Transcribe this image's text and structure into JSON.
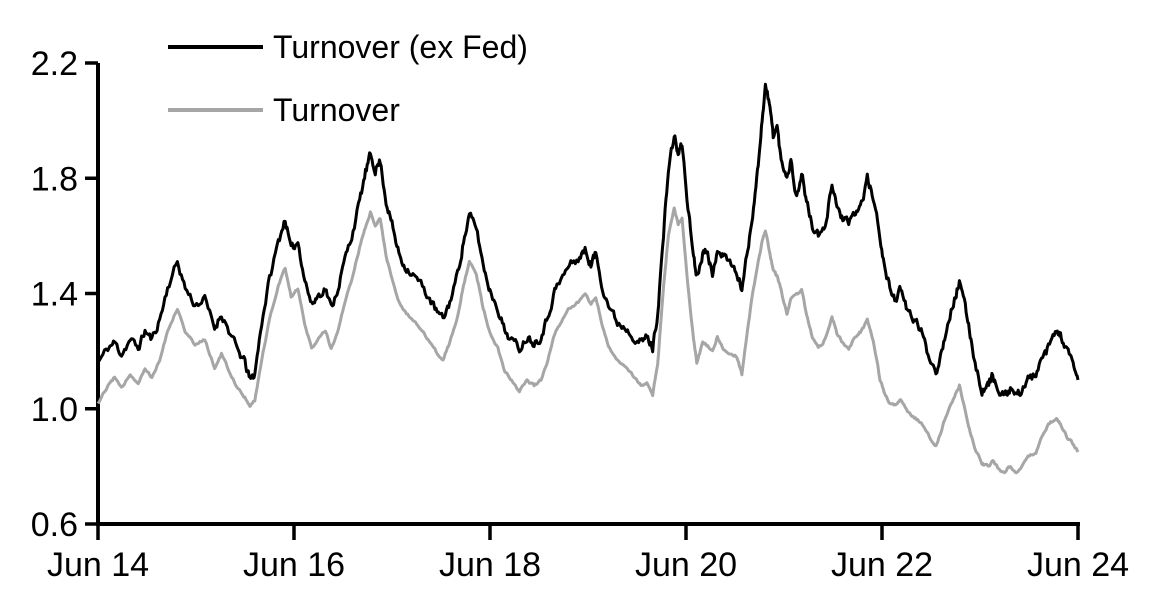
{
  "chart_data": {
    "type": "line",
    "title": "",
    "grid": "off",
    "plot_background": "#ffffff",
    "x_axis": {
      "tick_labels": [
        "Jun 14",
        "Jun 16",
        "Jun 18",
        "Jun 20",
        "Jun 22",
        "Jun 24"
      ],
      "tick_positions": [
        0,
        2,
        4,
        6,
        8,
        10
      ],
      "range": [
        0,
        10
      ],
      "unit": "years since Jun 2014"
    },
    "y_axis": {
      "tick_labels": [
        "0.6",
        "1.0",
        "1.4",
        "1.8",
        "2.2"
      ],
      "tick_values": [
        0.6,
        1.0,
        1.4,
        1.8,
        2.2
      ],
      "range": [
        0.6,
        2.2
      ]
    },
    "legend": {
      "position": "top-left-inside",
      "entries": [
        {
          "label": "Turnover (ex Fed)",
          "color": "#000000"
        },
        {
          "label": "Turnover",
          "color": "#a6a6a6"
        }
      ]
    },
    "x": [
      0.0,
      0.1,
      0.17,
      0.24,
      0.33,
      0.41,
      0.48,
      0.55,
      0.63,
      0.71,
      0.81,
      0.89,
      0.99,
      1.09,
      1.19,
      1.26,
      1.35,
      1.43,
      1.5,
      1.55,
      1.6,
      1.67,
      1.75,
      1.84,
      1.91,
      1.97,
      2.04,
      2.11,
      2.18,
      2.24,
      2.32,
      2.38,
      2.45,
      2.52,
      2.59,
      2.67,
      2.73,
      2.78,
      2.83,
      2.88,
      2.94,
      3.0,
      3.06,
      3.12,
      3.2,
      3.28,
      3.37,
      3.45,
      3.52,
      3.59,
      3.67,
      3.73,
      3.79,
      3.86,
      3.93,
      4.0,
      4.08,
      4.15,
      4.22,
      4.3,
      4.38,
      4.45,
      4.52,
      4.59,
      4.66,
      4.73,
      4.81,
      4.9,
      4.97,
      5.03,
      5.08,
      5.15,
      5.22,
      5.3,
      5.39,
      5.47,
      5.54,
      5.6,
      5.66,
      5.71,
      5.77,
      5.82,
      5.88,
      5.92,
      5.96,
      6.02,
      6.07,
      6.11,
      6.17,
      6.22,
      6.27,
      6.32,
      6.38,
      6.46,
      6.52,
      6.57,
      6.63,
      6.68,
      6.73,
      6.77,
      6.81,
      6.85,
      6.89,
      6.93,
      6.97,
      7.03,
      7.07,
      7.13,
      7.18,
      7.23,
      7.29,
      7.35,
      7.42,
      7.49,
      7.54,
      7.6,
      7.66,
      7.73,
      7.79,
      7.85,
      7.91,
      7.98,
      8.03,
      8.08,
      8.14,
      8.19,
      8.26,
      8.33,
      8.4,
      8.47,
      8.55,
      8.61,
      8.67,
      8.74,
      8.79,
      8.85,
      8.9,
      8.95,
      9.02,
      9.08,
      9.13,
      9.19,
      9.25,
      9.31,
      9.37,
      9.43,
      9.49,
      9.57,
      9.64,
      9.71,
      9.78,
      9.83,
      9.89,
      9.95,
      10.0
    ],
    "series": [
      {
        "name": "Turnover (ex Fed)",
        "color": "#000000",
        "stroke_width": 3,
        "values": [
          1.16,
          1.21,
          1.23,
          1.19,
          1.24,
          1.21,
          1.27,
          1.24,
          1.31,
          1.42,
          1.51,
          1.42,
          1.36,
          1.38,
          1.28,
          1.33,
          1.26,
          1.2,
          1.16,
          1.1,
          1.12,
          1.3,
          1.45,
          1.58,
          1.66,
          1.55,
          1.58,
          1.45,
          1.36,
          1.39,
          1.42,
          1.35,
          1.42,
          1.52,
          1.6,
          1.72,
          1.82,
          1.88,
          1.83,
          1.86,
          1.72,
          1.64,
          1.55,
          1.5,
          1.47,
          1.44,
          1.39,
          1.34,
          1.31,
          1.37,
          1.47,
          1.58,
          1.67,
          1.63,
          1.5,
          1.41,
          1.35,
          1.27,
          1.24,
          1.21,
          1.25,
          1.23,
          1.25,
          1.32,
          1.41,
          1.45,
          1.5,
          1.52,
          1.55,
          1.5,
          1.54,
          1.42,
          1.35,
          1.3,
          1.28,
          1.25,
          1.23,
          1.25,
          1.21,
          1.33,
          1.6,
          1.83,
          1.95,
          1.88,
          1.92,
          1.7,
          1.55,
          1.46,
          1.54,
          1.56,
          1.45,
          1.56,
          1.53,
          1.51,
          1.46,
          1.42,
          1.55,
          1.68,
          1.82,
          1.98,
          2.12,
          2.06,
          1.95,
          1.98,
          1.86,
          1.81,
          1.86,
          1.73,
          1.82,
          1.72,
          1.63,
          1.6,
          1.62,
          1.79,
          1.7,
          1.66,
          1.64,
          1.68,
          1.71,
          1.8,
          1.73,
          1.6,
          1.48,
          1.42,
          1.38,
          1.41,
          1.34,
          1.31,
          1.27,
          1.19,
          1.13,
          1.2,
          1.3,
          1.38,
          1.44,
          1.35,
          1.26,
          1.16,
          1.06,
          1.08,
          1.12,
          1.05,
          1.04,
          1.07,
          1.04,
          1.07,
          1.1,
          1.12,
          1.17,
          1.22,
          1.27,
          1.25,
          1.2,
          1.15,
          1.1
        ]
      },
      {
        "name": "Turnover",
        "color": "#a6a6a6",
        "stroke_width": 3,
        "values": [
          1.02,
          1.08,
          1.11,
          1.07,
          1.12,
          1.09,
          1.14,
          1.11,
          1.17,
          1.27,
          1.35,
          1.27,
          1.22,
          1.24,
          1.14,
          1.19,
          1.12,
          1.07,
          1.04,
          1.01,
          1.03,
          1.17,
          1.31,
          1.43,
          1.49,
          1.39,
          1.42,
          1.29,
          1.21,
          1.24,
          1.27,
          1.21,
          1.27,
          1.37,
          1.45,
          1.56,
          1.63,
          1.68,
          1.64,
          1.66,
          1.53,
          1.45,
          1.38,
          1.34,
          1.31,
          1.28,
          1.24,
          1.2,
          1.17,
          1.23,
          1.32,
          1.43,
          1.51,
          1.47,
          1.35,
          1.26,
          1.21,
          1.13,
          1.1,
          1.06,
          1.1,
          1.08,
          1.1,
          1.17,
          1.26,
          1.3,
          1.35,
          1.37,
          1.4,
          1.36,
          1.39,
          1.28,
          1.21,
          1.17,
          1.14,
          1.11,
          1.08,
          1.09,
          1.05,
          1.15,
          1.42,
          1.6,
          1.7,
          1.64,
          1.66,
          1.42,
          1.26,
          1.16,
          1.23,
          1.22,
          1.2,
          1.25,
          1.21,
          1.19,
          1.18,
          1.12,
          1.28,
          1.4,
          1.5,
          1.57,
          1.62,
          1.55,
          1.48,
          1.46,
          1.41,
          1.33,
          1.38,
          1.4,
          1.41,
          1.33,
          1.25,
          1.21,
          1.24,
          1.32,
          1.26,
          1.23,
          1.21,
          1.25,
          1.27,
          1.31,
          1.24,
          1.1,
          1.05,
          1.02,
          1.01,
          1.03,
          0.99,
          0.97,
          0.95,
          0.91,
          0.87,
          0.93,
          0.99,
          1.04,
          1.08,
          0.99,
          0.92,
          0.86,
          0.81,
          0.8,
          0.82,
          0.79,
          0.78,
          0.8,
          0.78,
          0.8,
          0.83,
          0.85,
          0.91,
          0.95,
          0.97,
          0.94,
          0.9,
          0.88,
          0.85
        ]
      }
    ],
    "texture": {
      "seed": 11,
      "subdivisions": 6,
      "jitter_amplitude": [
        0.013,
        0.004
      ]
    }
  },
  "colors": {
    "background": "#ffffff",
    "axis": "#000000",
    "text": "#000000"
  }
}
